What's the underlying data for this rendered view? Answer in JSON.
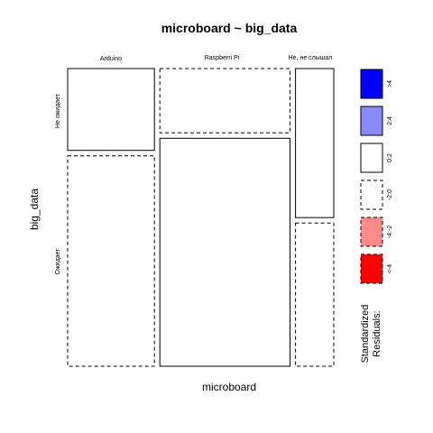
{
  "chart_data": {
    "type": "mosaic",
    "title": "microboard ~ big_data",
    "xlabel": "microboard",
    "ylabel": "big_data",
    "columns": [
      "Arduino",
      "Raspberri Pi",
      "Не, не слышал"
    ],
    "rows": [
      "Не ожидает",
      "Ожидает"
    ],
    "column_proportions": [
      0.34,
      0.51,
      0.15
    ],
    "row_proportions_by_column": [
      [
        0.28,
        0.72
      ],
      [
        0.22,
        0.78
      ],
      [
        0.51,
        0.49
      ]
    ],
    "cell_residual_class": [
      [
        "0:2",
        "-2:0"
      ],
      [
        "-2:0",
        "0:2"
      ],
      [
        "0:2",
        "-2:0"
      ]
    ],
    "legend": {
      "title_line1": "Standardized",
      "title_line2": "Residuals:",
      "items": [
        {
          "label": ">4",
          "color": "#0000ff",
          "dashed": false
        },
        {
          "label": "2:4",
          "color": "#8a8aff",
          "dashed": false
        },
        {
          "label": "0:2",
          "color": "#ffffff",
          "dashed": false
        },
        {
          "label": "-2:0",
          "color": "#ffffff",
          "dashed": true
        },
        {
          "label": "-4:-2",
          "color": "#ff8a8a",
          "dashed": true
        },
        {
          "label": "<-4",
          "color": "#ff0000",
          "dashed": true
        }
      ]
    }
  }
}
